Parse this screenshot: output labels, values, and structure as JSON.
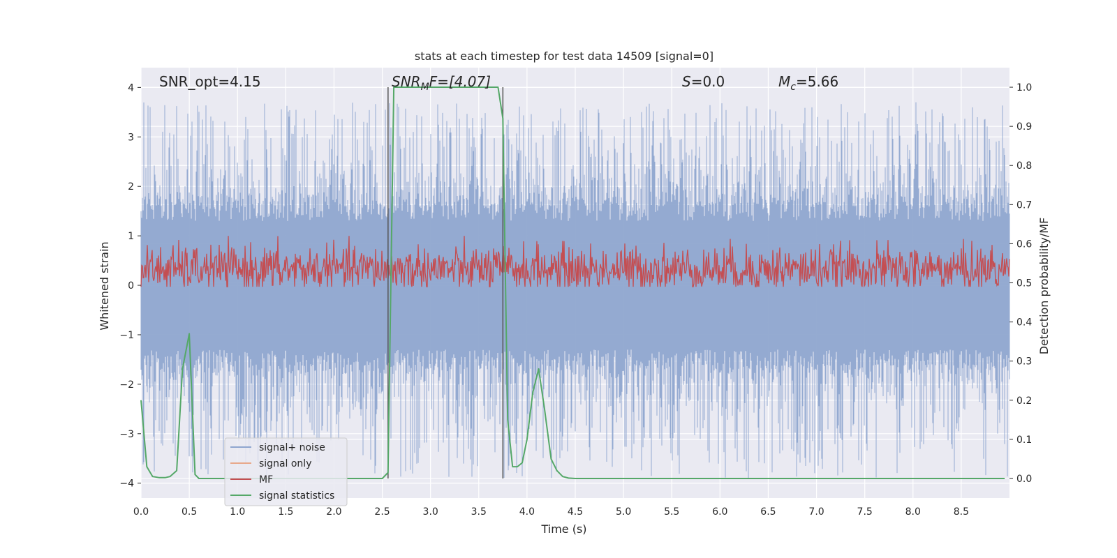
{
  "chart_data": {
    "type": "line",
    "title": "stats at each timestep for test data 14509 [signal=0]",
    "xlabel": "Time (s)",
    "ylabel": "Whitened strain",
    "ylabel_right": "Detection probability/MF",
    "xlim": [
      0,
      9.0
    ],
    "ylim": [
      -4.3,
      4.4
    ],
    "ylim_right": [
      -0.05,
      1.05
    ],
    "xticks": [
      0.0,
      0.5,
      1.0,
      1.5,
      2.0,
      2.5,
      3.0,
      3.5,
      4.0,
      4.5,
      5.0,
      5.5,
      6.0,
      6.5,
      7.0,
      7.5,
      8.0,
      8.5
    ],
    "xtick_labels": [
      "0.0",
      "0.5",
      "1.0",
      "1.5",
      "2.0",
      "2.5",
      "3.0",
      "3.5",
      "4.0",
      "4.5",
      "5.0",
      "5.5",
      "6.0",
      "6.5",
      "7.0",
      "7.5",
      "8.0",
      "8.5"
    ],
    "yticks": [
      4,
      3,
      2,
      1,
      0,
      -1,
      -2,
      -3,
      -4
    ],
    "ytick_labels": [
      "4",
      "3",
      "2",
      "1",
      "0",
      "−1",
      "−2",
      "−3",
      "−4"
    ],
    "yticks_right": [
      1.0,
      0.9,
      0.8,
      0.7,
      0.6,
      0.5,
      0.4,
      0.3,
      0.2,
      0.1,
      0.0
    ],
    "ytick_right_labels": [
      "1.0",
      "0.9",
      "0.8",
      "0.7",
      "0.6",
      "0.5",
      "0.4",
      "0.3",
      "0.2",
      "0.1",
      "0.0"
    ],
    "annotations": {
      "snr_opt": "SNR_opt=4.15",
      "snr_mf_name": "SNR",
      "snr_mf_sub": "M",
      "snr_mf_rest": "F=[4.07]",
      "s_name": "S",
      "s_value": "=0.0",
      "mc_name": "M",
      "mc_sub": "c",
      "mc_value": "=5.66"
    },
    "vlines": [
      2.56,
      3.75
    ],
    "legend": {
      "placement": "lower-left",
      "entries": [
        "signal+ noise",
        "signal only",
        "MF",
        "signal statistics"
      ]
    },
    "series": [
      {
        "name": "signal+ noise",
        "color": "#8fa6cf",
        "description": "whitened noise, amplitude ~ ±1.6 with spikes to ±4"
      },
      {
        "name": "signal only",
        "color": "#e8a88a",
        "values": []
      },
      {
        "name": "MF",
        "color": "#c44e52",
        "description": "matched filter output, mostly 0.0–0.6 on right axis"
      },
      {
        "name": "signal statistics",
        "color": "#55a868",
        "x": [
          0.0,
          0.06,
          0.12,
          0.19,
          0.25,
          0.3,
          0.37,
          0.43,
          0.5,
          0.56,
          0.6,
          1.0,
          2.0,
          2.5,
          2.56,
          2.62,
          3.0,
          3.5,
          3.7,
          3.75,
          3.8,
          3.85,
          3.9,
          3.95,
          4.0,
          4.06,
          4.12,
          4.18,
          4.25,
          4.31,
          4.37,
          4.43,
          4.5,
          5.0,
          8.95
        ],
        "y": [
          0.2,
          0.03,
          0.005,
          0.002,
          0.002,
          0.005,
          0.02,
          0.28,
          0.37,
          0.01,
          0.0,
          0.0,
          0.0,
          0.0,
          0.015,
          1.0,
          1.0,
          1.0,
          1.0,
          0.92,
          0.15,
          0.03,
          0.03,
          0.04,
          0.1,
          0.22,
          0.28,
          0.18,
          0.05,
          0.02,
          0.005,
          0.001,
          0.0,
          0.0,
          0.0
        ]
      }
    ]
  }
}
